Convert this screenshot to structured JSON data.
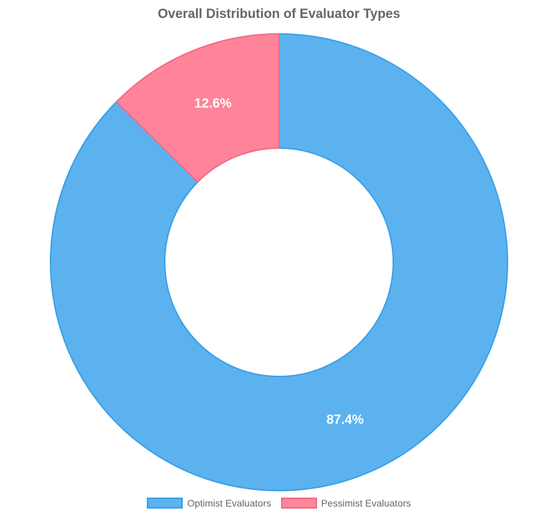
{
  "chart_data": {
    "type": "pie",
    "variant": "doughnut",
    "title": "Overall Distribution of Evaluator Types",
    "categories": [
      "Optimist Evaluators",
      "Pessimist Evaluators"
    ],
    "values": [
      87.4,
      12.6
    ],
    "data_labels": [
      "87.4%",
      "12.6%"
    ],
    "colors": [
      "#5cb2ef",
      "#ff8399"
    ],
    "border_colors": [
      "#3a9fe8",
      "#f06a87"
    ],
    "legend_position": "bottom"
  }
}
